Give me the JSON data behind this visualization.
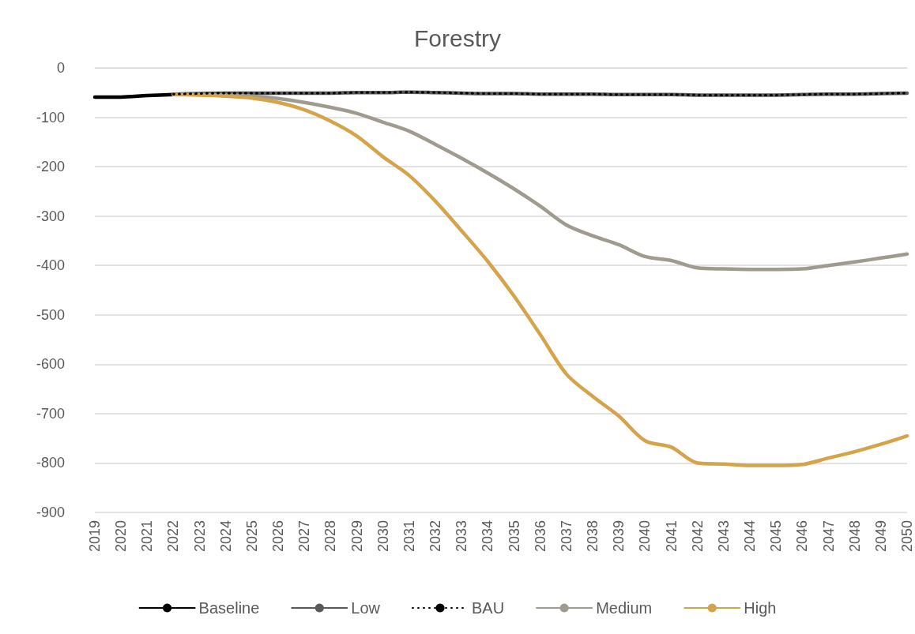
{
  "chart_data": {
    "type": "line",
    "title": "Forestry",
    "categories": [
      "2019",
      "2020",
      "2021",
      "2022",
      "2023",
      "2024",
      "2025",
      "2026",
      "2027",
      "2028",
      "2029",
      "2030",
      "2031",
      "2032",
      "2033",
      "2034",
      "2035",
      "2036",
      "2037",
      "2038",
      "2039",
      "2040",
      "2041",
      "2042",
      "2043",
      "2044",
      "2045",
      "2046",
      "2047",
      "2048",
      "2049",
      "2050"
    ],
    "series": [
      {
        "name": "Baseline",
        "color": "#000000",
        "line_style": "solid",
        "values": [
          -59,
          -59,
          -56,
          -54,
          null,
          null,
          null,
          null,
          null,
          null,
          null,
          null,
          null,
          null,
          null,
          null,
          null,
          null,
          null,
          null,
          null,
          null,
          null,
          null,
          null,
          null,
          null,
          null,
          null,
          null,
          null,
          null
        ]
      },
      {
        "name": "Low",
        "color": "#595959",
        "line_style": "solid",
        "values": [
          null,
          null,
          null,
          -53,
          -52,
          -51,
          -51,
          -51,
          -51,
          -51,
          -50,
          -50,
          -49,
          -50,
          -51,
          -52,
          -52,
          -53,
          -53,
          -53,
          -54,
          -54,
          -54,
          -55,
          -55,
          -55,
          -55,
          -54,
          -53,
          -53,
          -52,
          -51
        ]
      },
      {
        "name": "BAU",
        "color": "#000000",
        "line_style": "dotted",
        "values": [
          null,
          null,
          null,
          -53,
          -52,
          -51,
          -51,
          -51,
          -51,
          -51,
          -50,
          -50,
          -49,
          -50,
          -51,
          -52,
          -52,
          -53,
          -53,
          -53,
          -54,
          -54,
          -54,
          -55,
          -55,
          -55,
          -55,
          -54,
          -53,
          -53,
          -52,
          -51
        ]
      },
      {
        "name": "Medium",
        "color": "#a09b8f",
        "line_style": "solid",
        "values": [
          null,
          null,
          null,
          -54,
          -54,
          -55,
          -57,
          -62,
          -70,
          -80,
          -92,
          -110,
          -128,
          -155,
          -183,
          -213,
          -245,
          -280,
          -318,
          -340,
          -358,
          -382,
          -390,
          -405,
          -407,
          -408,
          -408,
          -407,
          -400,
          -393,
          -385,
          -377
        ]
      },
      {
        "name": "High",
        "color": "#d4a34a",
        "line_style": "solid",
        "values": [
          null,
          null,
          null,
          -54,
          -55,
          -57,
          -61,
          -70,
          -85,
          -108,
          -138,
          -180,
          -218,
          -270,
          -330,
          -392,
          -462,
          -540,
          -620,
          -665,
          -705,
          -755,
          -768,
          -800,
          -802,
          -805,
          -805,
          -803,
          -790,
          -777,
          -762,
          -745
        ]
      }
    ],
    "ylim": [
      -900,
      0
    ],
    "yticks": [
      -900,
      -800,
      -700,
      -600,
      -500,
      -400,
      -300,
      -200,
      -100,
      0
    ],
    "grid": "y",
    "legend": "bottom",
    "marker": "none"
  }
}
